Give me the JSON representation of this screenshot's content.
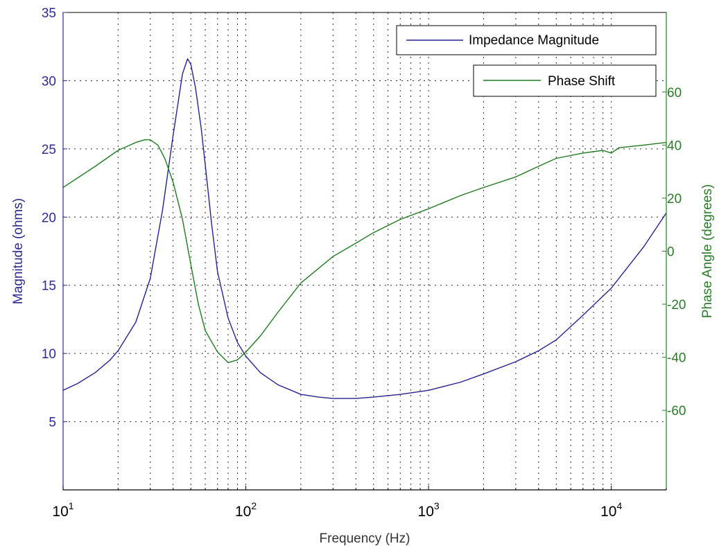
{
  "chart_data": {
    "type": "line",
    "title": "",
    "xlabel": "Frequency (Hz)",
    "ylabel_left": "Magnitude (ohms)",
    "ylabel_right": "Phase Angle (degrees)",
    "x_scale": "log",
    "xlim": [
      10,
      20000
    ],
    "ylim_left": [
      0,
      35
    ],
    "ylim_right": [
      -90,
      90
    ],
    "grid": true,
    "x_ticks": [
      {
        "value": 10,
        "base": "10",
        "exp": "1"
      },
      {
        "value": 100,
        "base": "10",
        "exp": "2"
      },
      {
        "value": 1000,
        "base": "10",
        "exp": "3"
      },
      {
        "value": 10000,
        "base": "10",
        "exp": "4"
      }
    ],
    "y_ticks_left": [
      5,
      10,
      15,
      20,
      25,
      30,
      35
    ],
    "y_ticks_right": [
      -60,
      -40,
      -20,
      0,
      20,
      40,
      60
    ],
    "colors": {
      "magnitude": "#22228f",
      "phase": "#1f7a1f",
      "axis_left": "#2b2b90",
      "axis_right": "#2a7a2a",
      "grid": "#000000"
    },
    "legends": [
      {
        "label": "Impedance Magnitude",
        "series": "magnitude",
        "position": "top-right"
      },
      {
        "label": "Phase Shift",
        "series": "phase",
        "position": "top-right"
      }
    ],
    "series": [
      {
        "name": "Impedance Magnitude",
        "axis": "left",
        "x": [
          10,
          12,
          15,
          18,
          20,
          25,
          30,
          35,
          40,
          45,
          48,
          50,
          53,
          57,
          60,
          65,
          70,
          80,
          90,
          100,
          120,
          150,
          200,
          250,
          300,
          400,
          500,
          700,
          1000,
          1500,
          2000,
          3000,
          4000,
          5000,
          7000,
          10000,
          15000,
          20000
        ],
        "values": [
          7.3,
          7.8,
          8.6,
          9.5,
          10.2,
          12.3,
          15.5,
          20.5,
          26.0,
          30.5,
          31.6,
          31.2,
          29.5,
          26.5,
          23.8,
          19.5,
          16.0,
          12.6,
          10.8,
          9.8,
          8.6,
          7.7,
          7.0,
          6.8,
          6.7,
          6.7,
          6.8,
          7.0,
          7.3,
          7.9,
          8.5,
          9.4,
          10.2,
          11.0,
          12.8,
          14.8,
          17.8,
          20.3
        ]
      },
      {
        "name": "Phase Shift",
        "axis": "right",
        "x": [
          10,
          15,
          20,
          25,
          28,
          30,
          33,
          36,
          40,
          45,
          50,
          55,
          60,
          70,
          80,
          90,
          100,
          120,
          150,
          200,
          300,
          400,
          500,
          700,
          1000,
          1500,
          2000,
          3000,
          4000,
          5000,
          7000,
          9000,
          10000,
          11000,
          15000,
          20000
        ],
        "values": [
          24,
          32,
          38,
          41,
          42,
          42,
          40,
          35,
          26,
          12,
          -5,
          -20,
          -30,
          -38,
          -42,
          -41,
          -38,
          -32,
          -23,
          -12,
          -2,
          3,
          7,
          12,
          16,
          21,
          24,
          28,
          32,
          35,
          37,
          38,
          37,
          39,
          40,
          41
        ]
      }
    ]
  }
}
